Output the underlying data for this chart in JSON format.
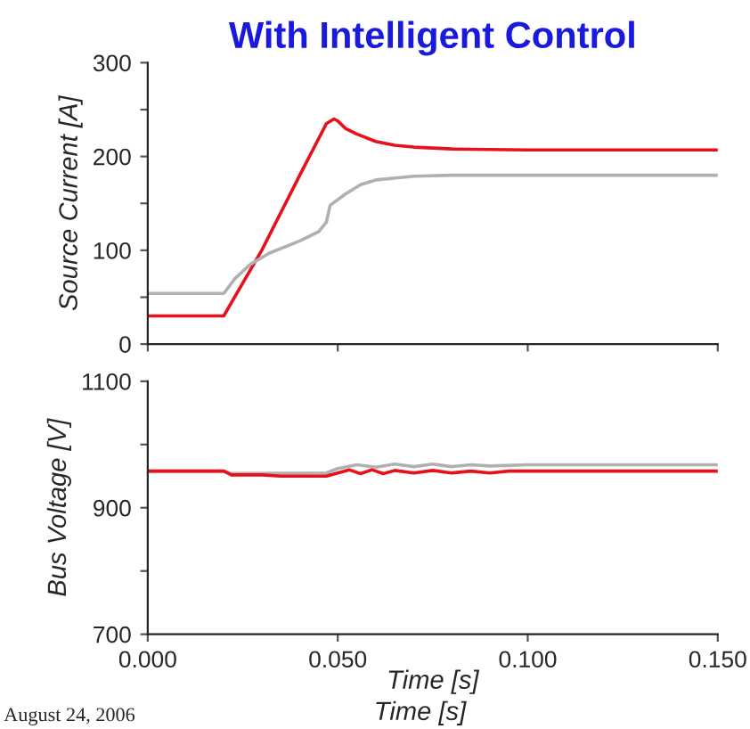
{
  "chart_data": [
    {
      "type": "line",
      "title": "With Intelligent Control",
      "ylabel": "Source Current [A]",
      "xlim": [
        0,
        0.15
      ],
      "ylim": [
        0,
        300
      ],
      "xticks": [
        {
          "value": 0,
          "label": null
        },
        {
          "value": 0.05,
          "label": null
        },
        {
          "value": 0.1,
          "label": null
        },
        {
          "value": 0.15,
          "label": null
        }
      ],
      "yticks": [
        0,
        {
          "value": 50,
          "label": null
        },
        100,
        {
          "value": 150,
          "label": null
        },
        200,
        {
          "value": 250,
          "label": null
        },
        300
      ],
      "tick_labels": "y",
      "grid": false,
      "legend": false,
      "series": [
        {
          "color": "#e8101a",
          "x": [
            0,
            0.02,
            0.03,
            0.04,
            0.047,
            0.049,
            0.05,
            0.052,
            0.055,
            0.06,
            0.065,
            0.07,
            0.08,
            0.1,
            0.15
          ],
          "values": [
            30,
            30,
            100,
            180,
            235,
            240,
            238,
            230,
            224,
            216,
            212,
            210,
            208,
            207,
            207
          ]
        },
        {
          "color": "#b0b0b0",
          "x": [
            0,
            0.02,
            0.023,
            0.027,
            0.032,
            0.04,
            0.045,
            0.047,
            0.048,
            0.052,
            0.056,
            0.06,
            0.07,
            0.08,
            0.15
          ],
          "values": [
            54,
            54,
            70,
            85,
            97,
            110,
            120,
            130,
            148,
            160,
            170,
            175,
            179,
            180,
            180
          ]
        }
      ]
    },
    {
      "type": "line",
      "ylabel": "Bus Voltage [V]",
      "xlabel": "Time [s]",
      "xlim": [
        0,
        0.15
      ],
      "ylim": [
        700,
        1100
      ],
      "xticks": [
        {
          "value": 0,
          "label": "0.000"
        },
        {
          "value": 0.05,
          "label": "0.050"
        },
        {
          "value": 0.1,
          "label": "0.100"
        },
        {
          "value": 0.15,
          "label": "0.150"
        }
      ],
      "yticks": [
        700,
        {
          "value": 800,
          "label": null
        },
        900,
        {
          "value": 1000,
          "label": null
        },
        1100
      ],
      "grid": false,
      "legend": false,
      "annotations": [
        "Time [s]",
        "August 24, 2006"
      ],
      "series": [
        {
          "color": "#b0b0b0",
          "x": [
            0,
            0.02,
            0.022,
            0.047,
            0.05,
            0.055,
            0.06,
            0.065,
            0.07,
            0.075,
            0.08,
            0.085,
            0.09,
            0.1,
            0.15
          ],
          "values": [
            958,
            958,
            954,
            955,
            962,
            968,
            964,
            969,
            965,
            969,
            965,
            968,
            966,
            968,
            968
          ]
        },
        {
          "color": "#e8101a",
          "x": [
            0,
            0.02,
            0.022,
            0.03,
            0.035,
            0.047,
            0.05,
            0.053,
            0.056,
            0.059,
            0.062,
            0.065,
            0.07,
            0.075,
            0.08,
            0.085,
            0.09,
            0.095,
            0.1,
            0.15
          ],
          "values": [
            958,
            958,
            952,
            952,
            950,
            950,
            955,
            960,
            954,
            960,
            954,
            959,
            955,
            959,
            955,
            958,
            955,
            958,
            958,
            958
          ]
        }
      ]
    }
  ]
}
